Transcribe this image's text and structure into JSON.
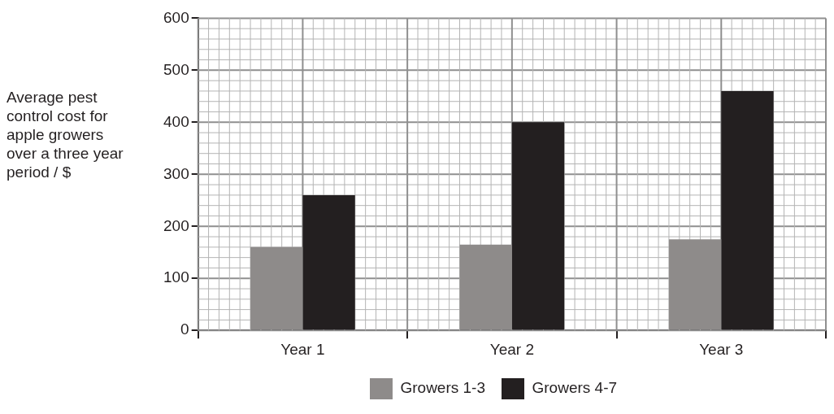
{
  "chart_data": {
    "type": "bar",
    "ylabel": "Average pest control cost for apple growers over a three year period / $",
    "categories": [
      "Year 1",
      "Year 2",
      "Year 3"
    ],
    "series": [
      {
        "name": "Growers 1-3",
        "color": "#8e8b8a",
        "values": [
          160,
          165,
          175
        ]
      },
      {
        "name": "Growers 4-7",
        "color": "#231f20",
        "values": [
          260,
          400,
          460
        ]
      }
    ],
    "ylim": [
      0,
      600
    ],
    "yticks": [
      0,
      100,
      200,
      300,
      400,
      500,
      600
    ],
    "grid": true,
    "legend": "bottom"
  }
}
